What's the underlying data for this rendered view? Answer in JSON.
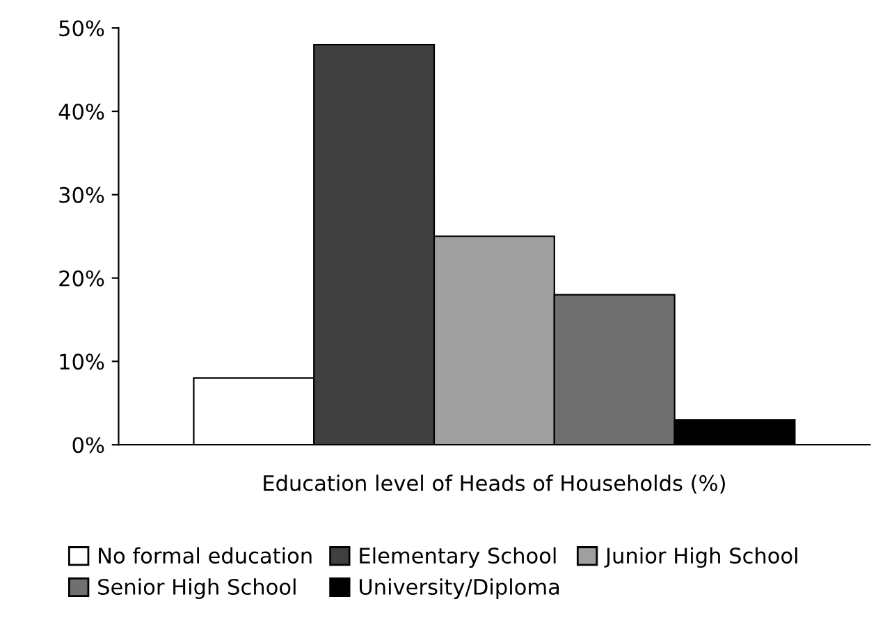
{
  "chart_data": {
    "type": "bar",
    "xlabel": "Education level of Heads of Households (%)",
    "categories": [
      null
    ],
    "series": [
      {
        "name": "No formal education",
        "color": "#ffffff",
        "values": [
          8
        ]
      },
      {
        "name": "Elementary School",
        "color": "#404040",
        "values": [
          48
        ]
      },
      {
        "name": "Junior High School",
        "color": "#a0a0a0",
        "values": [
          25
        ]
      },
      {
        "name": "Senior High School",
        "color": "#707070",
        "values": [
          18
        ]
      },
      {
        "name": "University/Diploma",
        "color": "#000000",
        "values": [
          3
        ]
      }
    ],
    "ylim": [
      0,
      50
    ],
    "yticks": [
      {
        "value": 0,
        "label": "0%"
      },
      {
        "value": 10,
        "label": "10%"
      },
      {
        "value": 20,
        "label": "20%"
      },
      {
        "value": 30,
        "label": "30%"
      },
      {
        "value": 40,
        "label": "40%"
      },
      {
        "value": 50,
        "label": "50%"
      }
    ],
    "grid": false,
    "legend": "bottom"
  }
}
